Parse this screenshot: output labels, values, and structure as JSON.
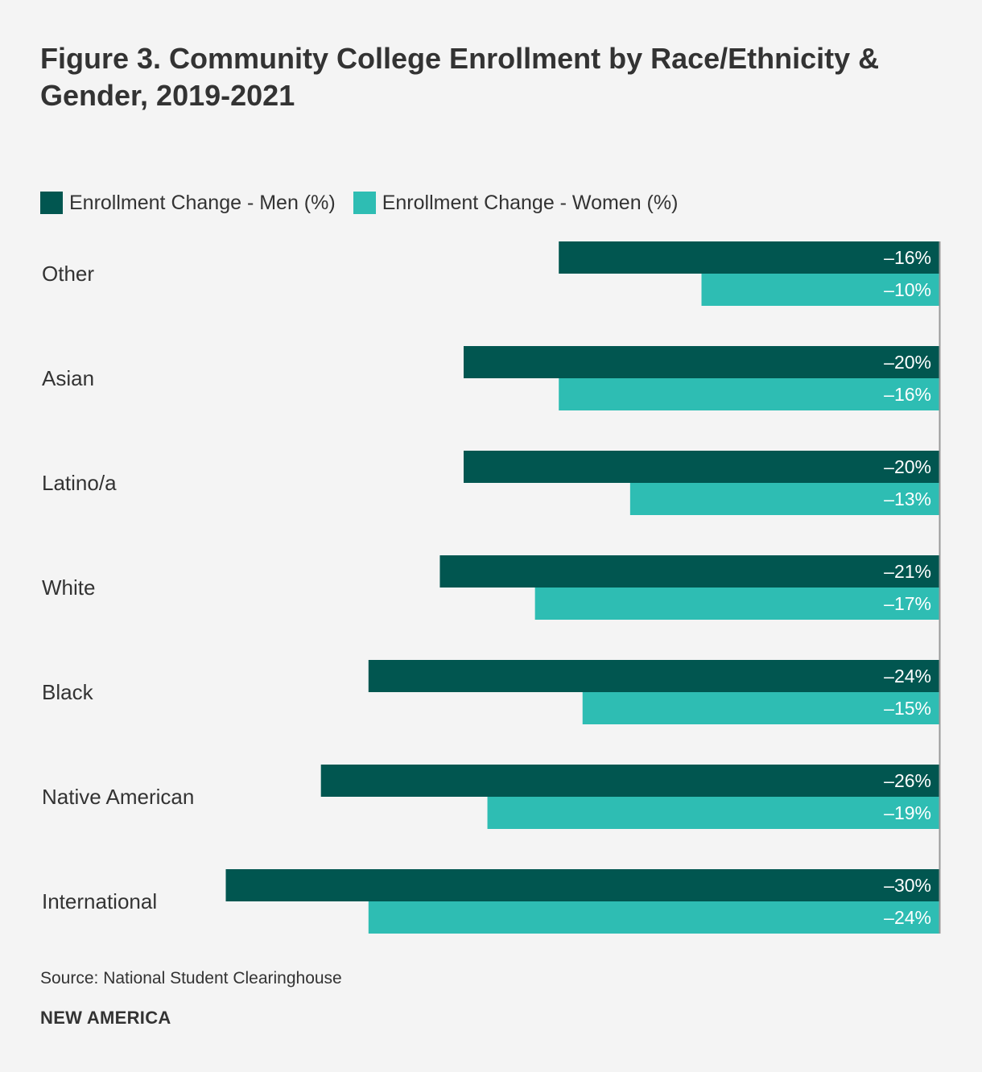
{
  "title": "Figure 3. Community College Enrollment by Race/Ethnicity & Gender, 2019-2021",
  "legend": {
    "men": "Enrollment Change - Men (%)",
    "women": "Enrollment Change - Women (%)"
  },
  "colors": {
    "men": "#015650",
    "women": "#2ebdb3",
    "axis": "#999999",
    "label_text": "#ffffff"
  },
  "chart_data": {
    "type": "bar",
    "orientation": "horizontal",
    "title": "Figure 3. Community College Enrollment by Race/Ethnicity & Gender, 2019-2021",
    "xlabel": "",
    "ylabel": "",
    "xlim": [
      -32,
      0
    ],
    "grid": false,
    "legend_position": "top-left",
    "categories": [
      "Other",
      "Asian",
      "Latino/a",
      "White",
      "Black",
      "Native American",
      "International"
    ],
    "series": [
      {
        "name": "Enrollment Change - Men (%)",
        "values": [
          -16,
          -20,
          -20,
          -21,
          -24,
          -26,
          -30
        ],
        "labels": [
          "–16%",
          "–20%",
          "–20%",
          "–21%",
          "–24%",
          "–26%",
          "–30%"
        ]
      },
      {
        "name": "Enrollment Change - Women (%)",
        "values": [
          -10,
          -16,
          -13,
          -17,
          -15,
          -19,
          -24
        ],
        "labels": [
          "–10%",
          "–16%",
          "–13%",
          "–17%",
          "–15%",
          "–19%",
          "–24%"
        ]
      }
    ]
  },
  "source": "Source: National Student Clearinghouse",
  "brand": "NEW AMERICA"
}
